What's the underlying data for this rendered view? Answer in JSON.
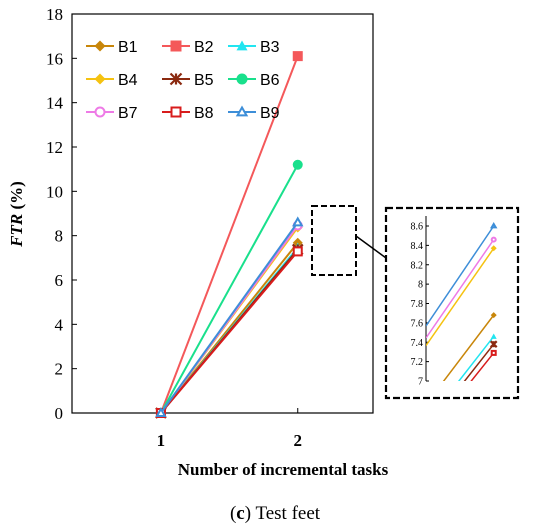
{
  "chart_data": {
    "type": "line",
    "x": [
      1,
      2
    ],
    "xticks": [
      "1",
      "2"
    ],
    "xlabel": "Number of incremental tasks",
    "ylabel_main": "FTR",
    "ylabel_unit": " (%)",
    "ylim": [
      0,
      18
    ],
    "yticks": [
      "0",
      "2",
      "4",
      "6",
      "8",
      "10",
      "12",
      "14",
      "16",
      "18"
    ],
    "legend_position": "top-left",
    "caption_letter": "c",
    "caption_text": " Test feet",
    "series": [
      {
        "name": "B1",
        "values": [
          0,
          7.68
        ],
        "color": "#c8860a",
        "marker": "diamond"
      },
      {
        "name": "B2",
        "values": [
          0,
          16.1
        ],
        "color": "#f4585a",
        "marker": "square"
      },
      {
        "name": "B3",
        "values": [
          0,
          7.46
        ],
        "color": "#22e5f0",
        "marker": "triangle"
      },
      {
        "name": "B4",
        "values": [
          0,
          8.37
        ],
        "color": "#f5c211",
        "marker": "diamond"
      },
      {
        "name": "B5",
        "values": [
          0,
          7.38
        ],
        "color": "#8b2a10",
        "marker": "star"
      },
      {
        "name": "B6",
        "values": [
          0,
          11.2
        ],
        "color": "#19e08c",
        "marker": "circle"
      },
      {
        "name": "B7",
        "values": [
          0,
          8.46
        ],
        "color": "#ee7ae6",
        "marker": "circle-open"
      },
      {
        "name": "B8",
        "values": [
          0,
          7.29
        ],
        "color": "#d81c1c",
        "marker": "square-open"
      },
      {
        "name": "B9",
        "values": [
          0,
          8.6
        ],
        "color": "#3d8ed8",
        "marker": "triangle-open"
      }
    ],
    "inset": {
      "ylim": [
        7,
        8.6
      ],
      "yticks": [
        "7",
        "7.2",
        "7.4",
        "7.6",
        "7.8",
        "8",
        "8.2",
        "8.4",
        "8.6"
      ]
    }
  }
}
